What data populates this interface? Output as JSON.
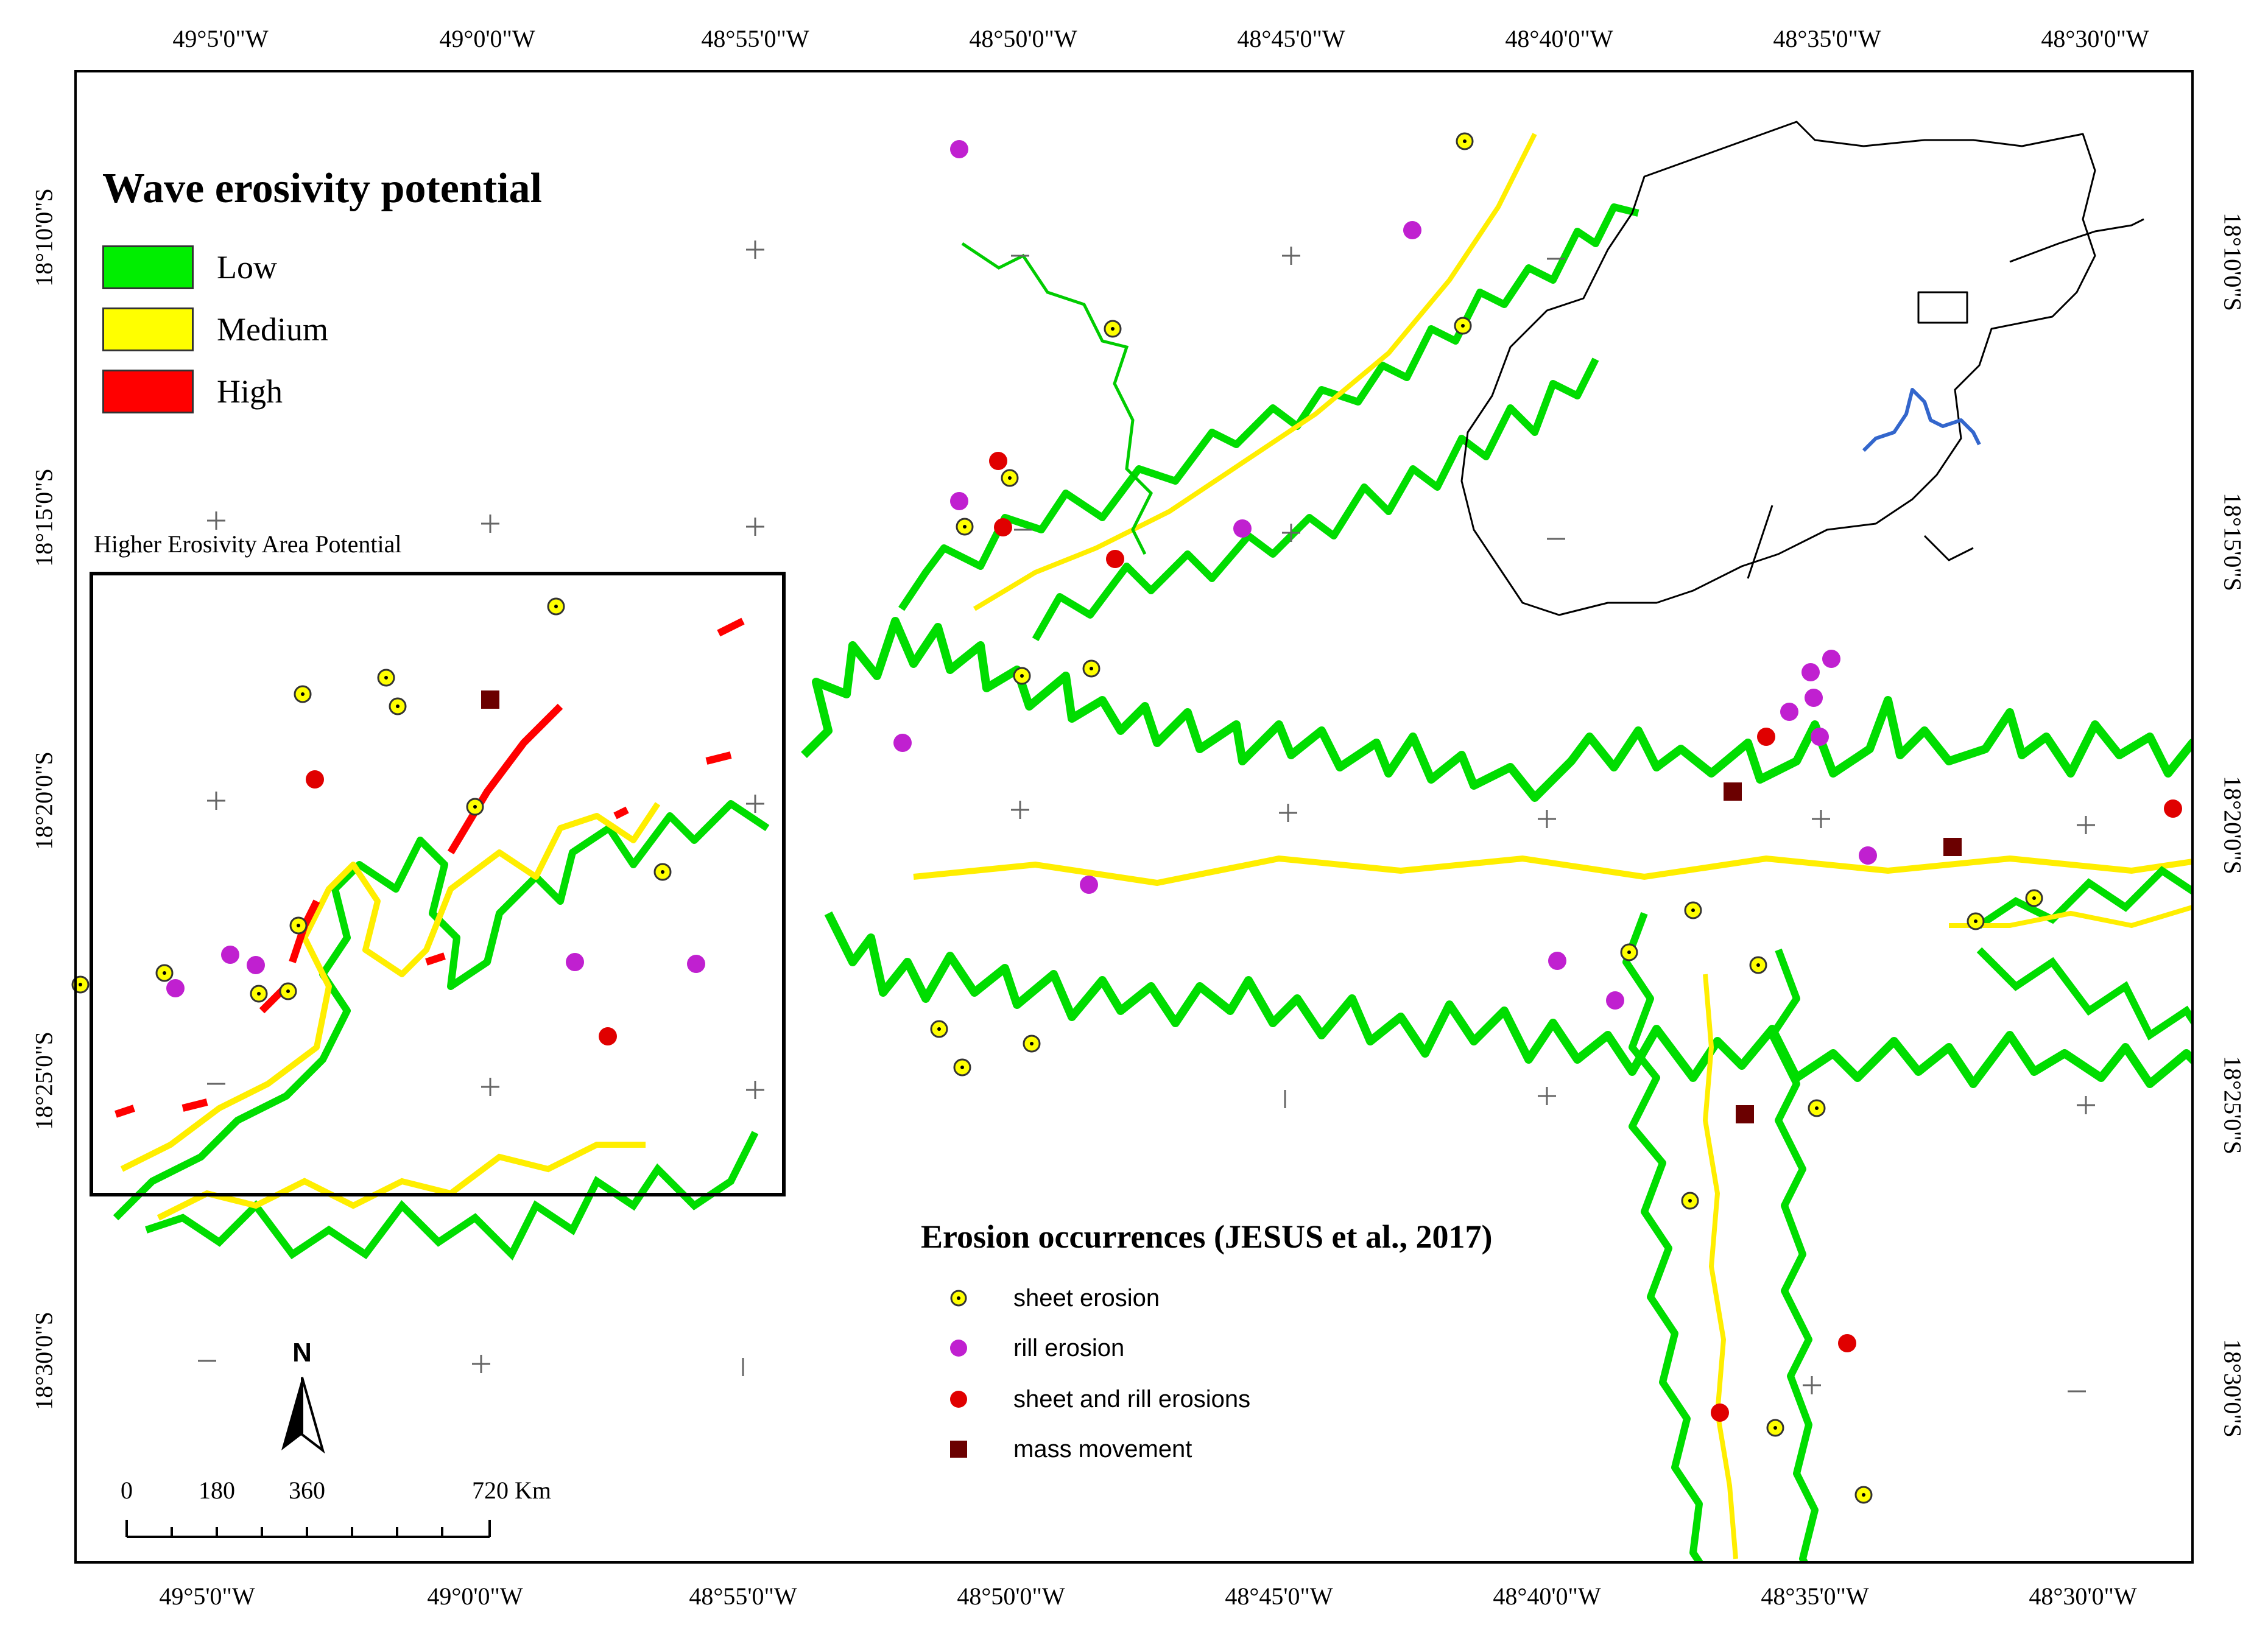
{
  "map": {
    "legend": {
      "title": "Wave erosivity potential",
      "classes": [
        {
          "label": "Low",
          "color": "#00ee00"
        },
        {
          "label": "Medium",
          "color": "#ffff00"
        },
        {
          "label": "High",
          "color": "#ff0000"
        }
      ]
    },
    "inset_box_caption": "Higher Erosivity Area Potential",
    "occurrences": {
      "title": "Erosion occurrences (JESUS et al., 2017)",
      "items": [
        {
          "label": "sheet erosion",
          "symbol": "yellow-dot-circle",
          "color": "#ffff00"
        },
        {
          "label": "rill erosion",
          "symbol": "purple-circle",
          "color": "#c020d0"
        },
        {
          "label": "sheet and rill erosions",
          "symbol": "red-circle",
          "color": "#e00000"
        },
        {
          "label": "mass movement",
          "symbol": "dark-red-square",
          "color": "#6b0000"
        }
      ]
    },
    "longitude_labels_top": [
      "49°5'0\"W",
      "49°0'0\"W",
      "48°55'0\"W",
      "48°50'0\"W",
      "48°45'0\"W",
      "48°40'0\"W",
      "48°35'0\"W",
      "48°30'0\"W"
    ],
    "longitude_labels_bottom": [
      "49°5'0\"W",
      "49°0'0\"W",
      "48°55'0\"W",
      "48°50'0\"W",
      "48°45'0\"W",
      "48°40'0\"W",
      "48°35'0\"W",
      "48°30'0\"W"
    ],
    "latitude_labels_left": [
      "18°10'0\"S",
      "18°15'0\"S",
      "18°20'0\"S",
      "18°25'0\"S",
      "18°30'0\"S"
    ],
    "latitude_labels_right": [
      "18°10'0\"S",
      "18°15'0\"S",
      "18°20'0\"S",
      "18°25'0\"S",
      "18°30'0\"S"
    ],
    "north_arrow_label": "N",
    "scale_bar": {
      "labels": [
        "0",
        "180",
        "360",
        "720 Km"
      ]
    },
    "locator_colors": {
      "outline": "#000000",
      "reservoir": "#3366cc"
    }
  }
}
